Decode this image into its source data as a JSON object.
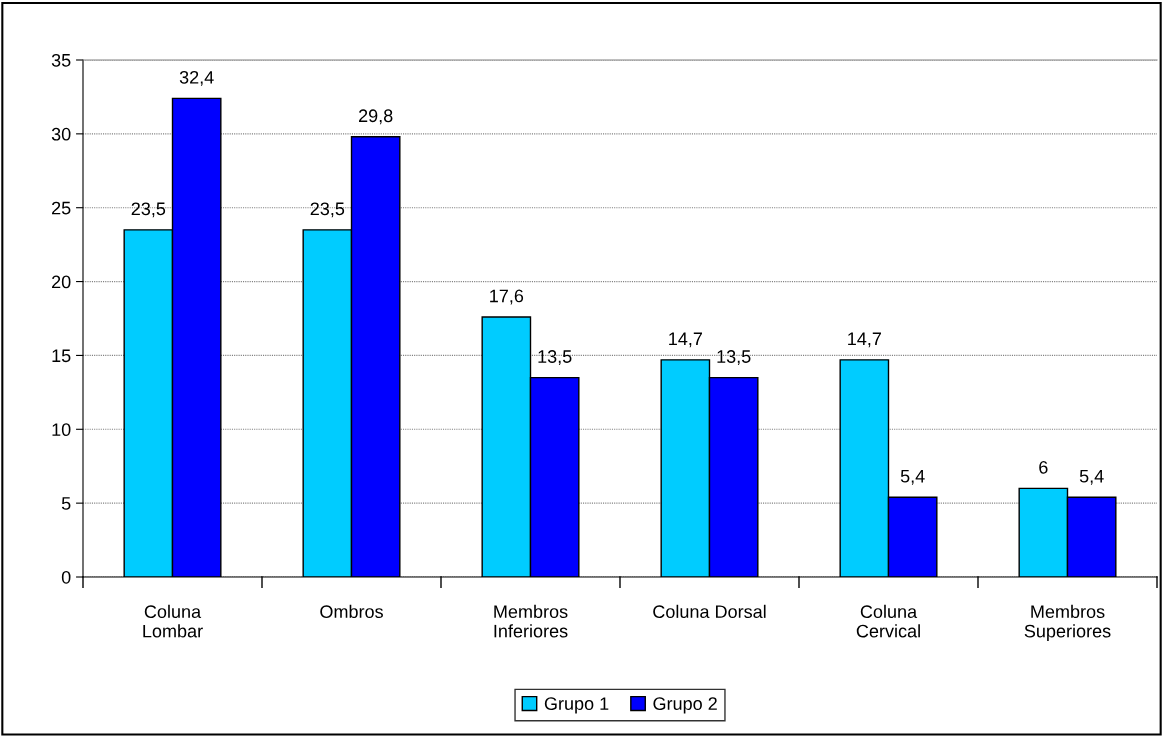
{
  "chart_data": {
    "type": "bar",
    "categories": [
      "Coluna\nLombar",
      "Ombros",
      "Membros\nInferiores",
      "Coluna Dorsal",
      "Coluna\nCervical",
      "Membros\nSuperiores"
    ],
    "series": [
      {
        "name": "Grupo 1",
        "color": "#00ccff",
        "values": [
          23.5,
          23.5,
          17.6,
          14.7,
          14.7,
          6
        ],
        "value_labels": [
          "23,5",
          "23,5",
          "17,6",
          "14,7",
          "14,7",
          "6"
        ]
      },
      {
        "name": "Grupo 2",
        "color": "#0000ff",
        "values": [
          32.4,
          29.8,
          13.5,
          13.5,
          5.4,
          5.4
        ],
        "value_labels": [
          "32,4",
          "29,8",
          "13,5",
          "13,5",
          "5,4",
          "5,4"
        ]
      }
    ],
    "ylim": [
      0,
      35
    ],
    "yticks": [
      0,
      5,
      10,
      15,
      20,
      25,
      30,
      35
    ],
    "grid": "y",
    "legend": "bottom"
  }
}
